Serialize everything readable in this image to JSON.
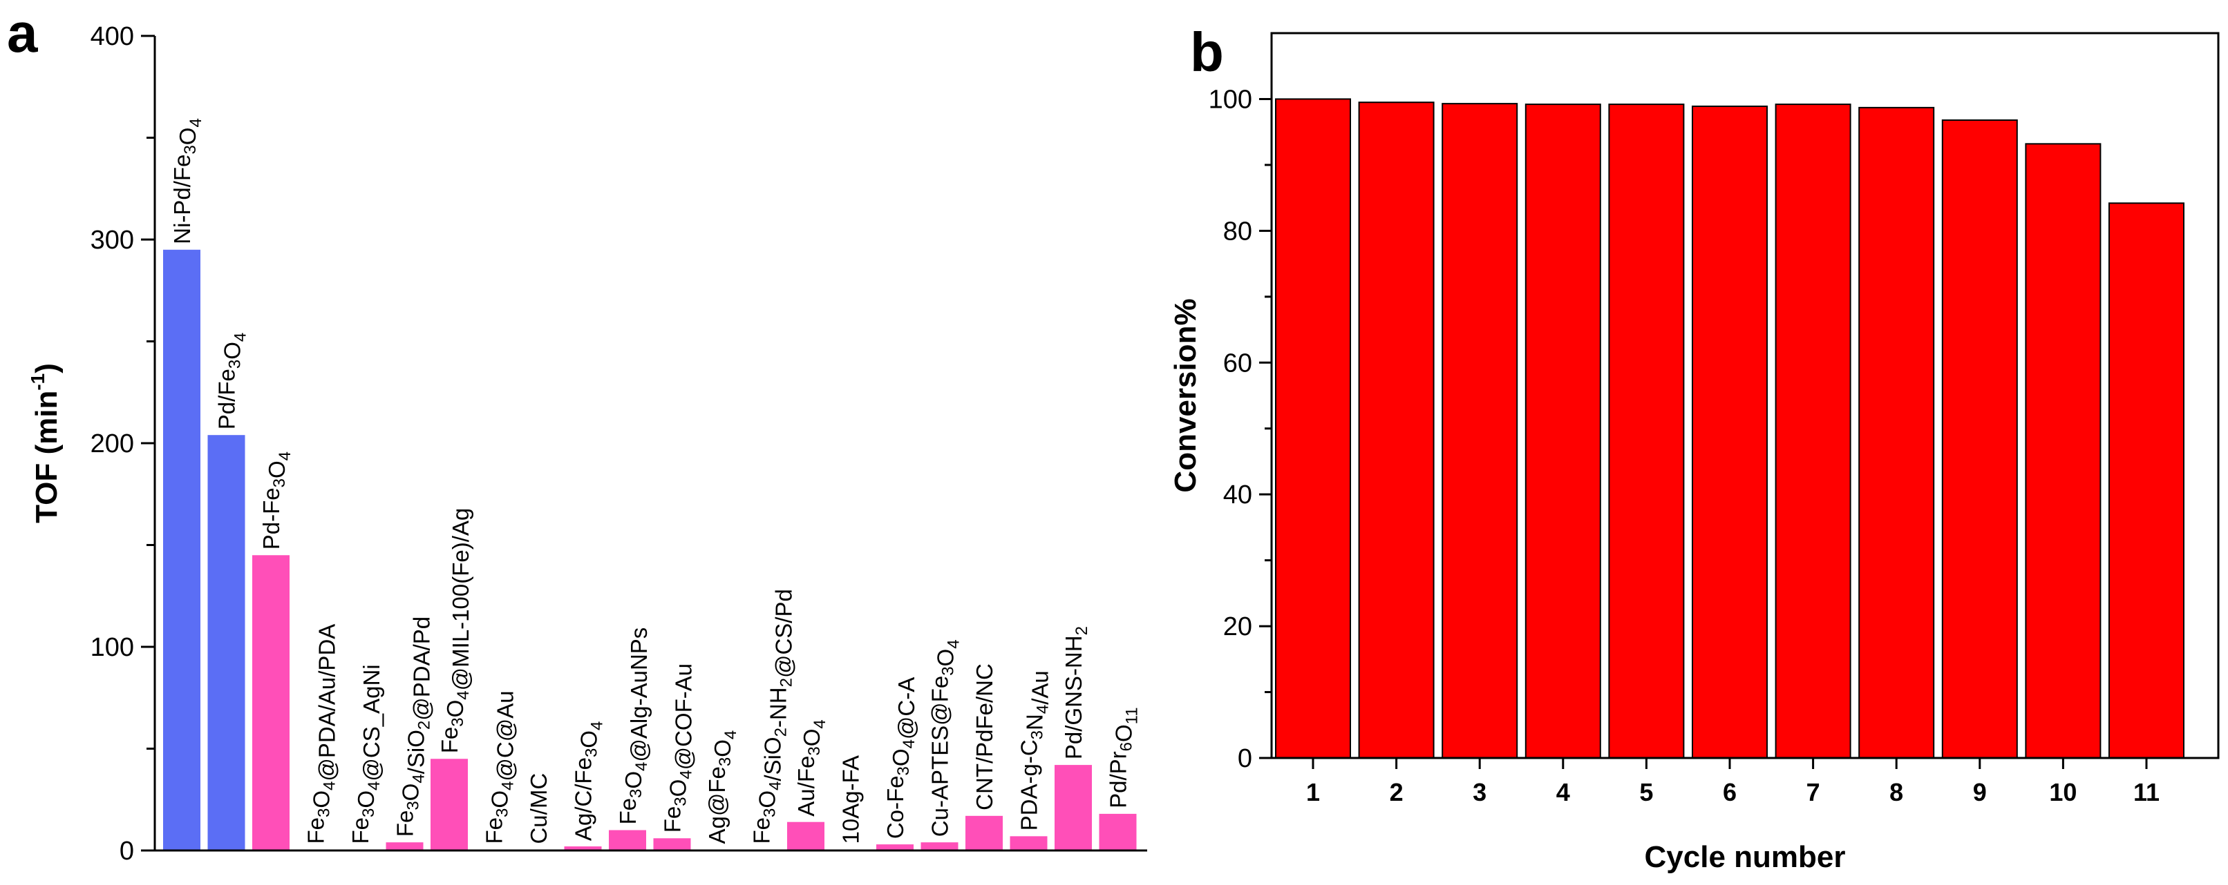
{
  "chart_data": [
    {
      "panel": "a",
      "type": "bar",
      "title": "",
      "xlabel": "",
      "ylabel": "TOF (min",
      "ylabel_sup": "-1",
      "ylabel_close": ")",
      "ylim": [
        0,
        400
      ],
      "yticks": [
        "0",
        "100",
        "200",
        "300",
        "400"
      ],
      "categories": [
        "Ni-Pd/Fe3O4",
        "Pd/Fe3O4",
        "Pd-Fe3O4",
        "Fe3O4@PDA/Au/PDA",
        "Fe3O4@CS_AgNi",
        "Fe3O4/SiO2@PDA/Pd",
        "Fe3O4@MIL-100(Fe)/Ag",
        "Fe3O4@C@Au",
        "Cu/MC",
        "Ag/C/Fe3O4",
        "Fe3O4@Alg-AuNPs",
        "Fe3O4@COF-Au",
        "Ag@Fe3O4",
        "Fe3O4/SiO2-NH2@CS/Pd",
        "Au/Fe3O4",
        "10Ag-FA",
        "Co-Fe3O4@C-A",
        "Cu-APTES@Fe3O4",
        "CNT/PdFe/NC",
        "PDA-g-C3N4/Au",
        "Pd/GNS-NH2",
        "Pd/Pr6O11"
      ],
      "values": [
        295,
        204,
        145,
        0.5,
        0.5,
        4,
        45,
        0.5,
        0.5,
        2,
        10,
        6,
        0.5,
        0.5,
        14,
        0.5,
        3,
        4,
        17,
        7,
        42,
        18
      ],
      "colors": [
        "#5b6ef5",
        "#5b6ef5",
        "#ff4fb8",
        "#ff4fb8",
        "#ff4fb8",
        "#ff4fb8",
        "#ff4fb8",
        "#ff4fb8",
        "#ff4fb8",
        "#ff4fb8",
        "#ff4fb8",
        "#ff4fb8",
        "#ff4fb8",
        "#ff4fb8",
        "#ff4fb8",
        "#ff4fb8",
        "#ff4fb8",
        "#ff4fb8",
        "#ff4fb8",
        "#ff4fb8",
        "#ff4fb8",
        "#ff4fb8"
      ]
    },
    {
      "panel": "b",
      "type": "bar",
      "title": "",
      "xlabel": "Cycle number",
      "ylabel": "Conversion%",
      "ylim": [
        0,
        110
      ],
      "yticks": [
        "0",
        "20",
        "40",
        "60",
        "80",
        "100"
      ],
      "categories": [
        "1",
        "2",
        "3",
        "4",
        "5",
        "6",
        "7",
        "8",
        "9",
        "10",
        "11"
      ],
      "values": [
        100,
        99.5,
        99.3,
        99.2,
        99.2,
        98.9,
        99.2,
        98.7,
        96.8,
        93.2,
        84.2
      ],
      "color": "#ff0000",
      "edge_color": "#000000"
    }
  ]
}
